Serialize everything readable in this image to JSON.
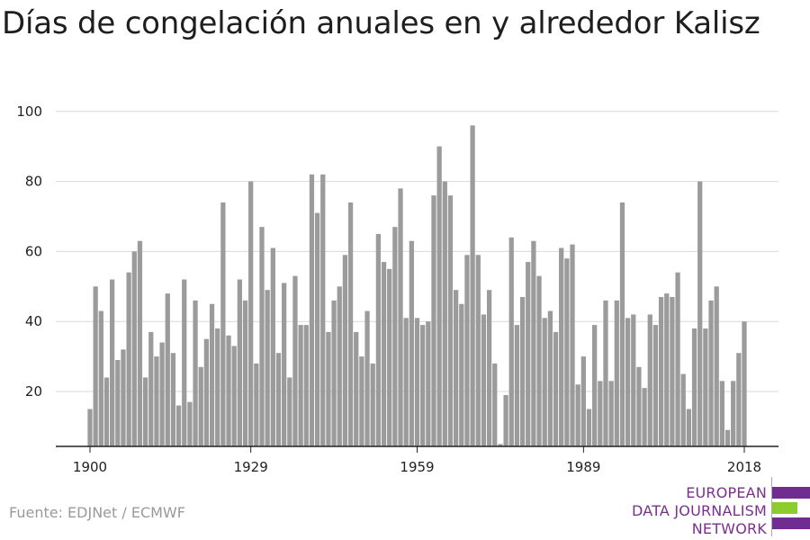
{
  "title": "Días de congelación anuales en y alrededor Kalisz",
  "source": "Fuente: EDJNet / ECMWF",
  "logo": {
    "line1": "EUROPEAN",
    "line2": "DATA JOURNALISM",
    "line3": "NETWORK",
    "colors": {
      "text": "#7b2f8e",
      "purple": "#6f2c91",
      "green": "#8ccc2c"
    }
  },
  "colors": {
    "bar": "#9b9b9b",
    "grid": "#d9d9d9",
    "axis": "#222222",
    "text": "#222222"
  },
  "chart_data": {
    "type": "bar",
    "title": "Días de congelación anuales en y alrededor Kalisz",
    "xlabel": "",
    "ylabel": "",
    "x_ticks": [
      1900,
      1929,
      1959,
      1989,
      2018
    ],
    "y_ticks": [
      20,
      40,
      60,
      80,
      100
    ],
    "ylim": [
      5,
      100
    ],
    "xlim": [
      1900,
      2018
    ],
    "grid": "horizontal",
    "categories": [
      1900,
      1901,
      1902,
      1903,
      1904,
      1905,
      1906,
      1907,
      1908,
      1909,
      1910,
      1911,
      1912,
      1913,
      1914,
      1915,
      1916,
      1917,
      1918,
      1919,
      1920,
      1921,
      1922,
      1923,
      1924,
      1925,
      1926,
      1927,
      1928,
      1929,
      1930,
      1931,
      1932,
      1933,
      1934,
      1935,
      1936,
      1937,
      1938,
      1939,
      1940,
      1941,
      1942,
      1943,
      1944,
      1945,
      1946,
      1947,
      1948,
      1949,
      1950,
      1951,
      1952,
      1953,
      1954,
      1955,
      1956,
      1957,
      1958,
      1959,
      1960,
      1961,
      1962,
      1963,
      1964,
      1965,
      1966,
      1967,
      1968,
      1969,
      1970,
      1971,
      1972,
      1973,
      1974,
      1975,
      1976,
      1977,
      1978,
      1979,
      1980,
      1981,
      1982,
      1983,
      1984,
      1985,
      1986,
      1987,
      1988,
      1989,
      1990,
      1991,
      1992,
      1993,
      1994,
      1995,
      1996,
      1997,
      1998,
      1999,
      2000,
      2001,
      2002,
      2003,
      2004,
      2005,
      2006,
      2007,
      2008,
      2009,
      2010,
      2011,
      2012,
      2013,
      2014,
      2015,
      2016,
      2017,
      2018
    ],
    "values": [
      15,
      50,
      43,
      24,
      52,
      29,
      32,
      54,
      60,
      63,
      24,
      37,
      30,
      34,
      48,
      31,
      16,
      52,
      17,
      46,
      27,
      35,
      45,
      38,
      74,
      36,
      33,
      52,
      46,
      80,
      28,
      67,
      49,
      61,
      31,
      51,
      24,
      53,
      39,
      39,
      82,
      71,
      82,
      37,
      46,
      50,
      59,
      74,
      37,
      30,
      43,
      28,
      65,
      57,
      55,
      67,
      78,
      41,
      63,
      41,
      39,
      40,
      76,
      90,
      80,
      76,
      49,
      45,
      59,
      96,
      59,
      42,
      49,
      28,
      5,
      19,
      64,
      39,
      47,
      57,
      63,
      53,
      41,
      43,
      37,
      61,
      58,
      62,
      22,
      30,
      15,
      39,
      23,
      46,
      23,
      46,
      74,
      41,
      42,
      27,
      21,
      42,
      39,
      47,
      48,
      47,
      54,
      25,
      15,
      38,
      80,
      38,
      46,
      50,
      23,
      9,
      23,
      31,
      40
    ]
  }
}
